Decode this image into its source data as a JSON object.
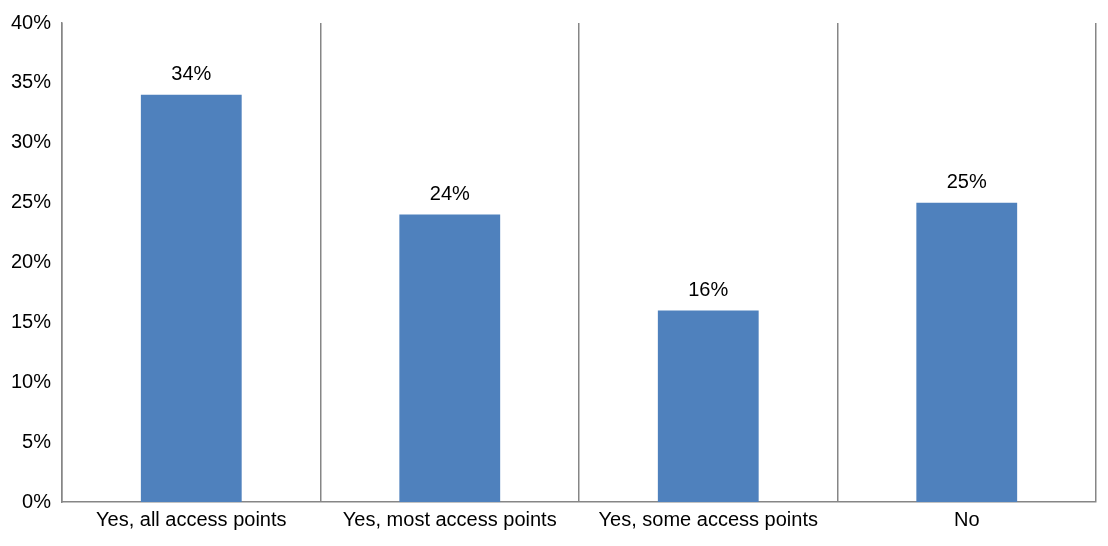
{
  "chart_data": {
    "type": "bar",
    "categories": [
      "Yes, all access points",
      "Yes, most access points",
      "Yes, some access points",
      "No"
    ],
    "values": [
      34,
      24,
      16,
      25
    ],
    "color": "#4f81bd",
    "value_labels": [
      "34%",
      "24%",
      "16%",
      "25%"
    ],
    "ylim": [
      0,
      40
    ],
    "yticks": [
      {
        "value": 0,
        "label": "0%"
      },
      {
        "value": 5,
        "label": "5%"
      },
      {
        "value": 10,
        "label": "10%"
      },
      {
        "value": 15,
        "label": "15%"
      },
      {
        "value": 20,
        "label": "20%"
      },
      {
        "value": 25,
        "label": "25%"
      },
      {
        "value": 30,
        "label": "30%"
      },
      {
        "value": 35,
        "label": "35%"
      },
      {
        "value": 40,
        "label": "40%"
      }
    ],
    "grid": "x",
    "legend": false
  }
}
